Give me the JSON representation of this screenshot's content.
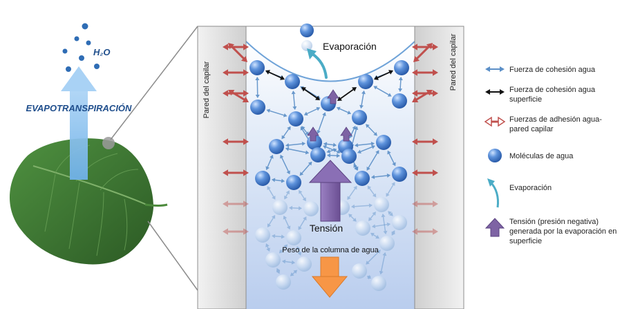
{
  "left": {
    "evapotranspiration_label": "EVAPOTRANSPIRACIÓN",
    "h2o_label": "H₂O"
  },
  "capillary": {
    "wall_label_left": "Pared del capilar",
    "wall_label_right": "Pared del capilar",
    "evaporation_label": "Evaporación",
    "tension_label": "Tensión",
    "weight_label": "Peso de la columna de agua"
  },
  "legend": {
    "items": [
      {
        "kind": "cohesion",
        "color": "#5b8fc7",
        "lines": [
          "Fuerza de cohesión agua"
        ]
      },
      {
        "kind": "surface-cohesion",
        "color": "#111111",
        "lines": [
          "Fuerza de cohesión agua",
          "superficie"
        ]
      },
      {
        "kind": "adhesion",
        "color": "#c0504d",
        "lines": [
          "Fuerzas de adhesión agua-",
          "pared capilar"
        ]
      },
      {
        "kind": "molecule",
        "color": "#3d74c4",
        "lines": [
          "Moléculas de agua"
        ]
      },
      {
        "kind": "evaporation",
        "color": "#4bacc6",
        "lines": [
          "Evaporación"
        ]
      },
      {
        "kind": "tension",
        "color": "#7e63a4",
        "lines": [
          "Tensión  (presión negativa)",
          "generada por la evaporación en",
          "superficie"
        ]
      }
    ]
  },
  "colors": {
    "cohesion": "#5b8fc7",
    "surface_cohesion": "#111111",
    "adhesion": "#c0504d",
    "molecule": "#3d74c4",
    "evaporation": "#4bacc6",
    "tension": "#7e63a4",
    "weight": "#f79646",
    "leaf": "#3f7a32"
  }
}
